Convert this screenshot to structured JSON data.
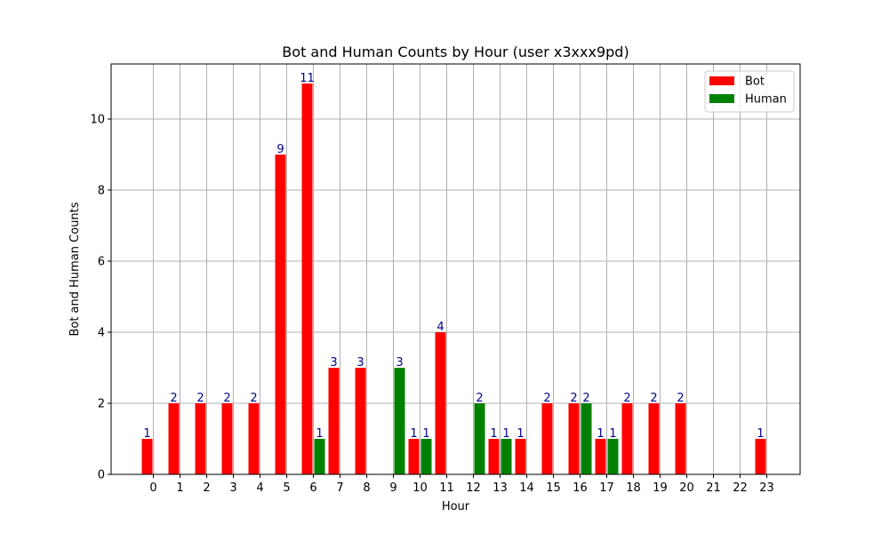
{
  "chart_data": {
    "type": "bar",
    "title": "Bot and Human Counts by Hour (user x3xxx9pd)",
    "xlabel": "Hour",
    "ylabel": "Bot and Human Counts",
    "categories": [
      "0",
      "1",
      "2",
      "3",
      "4",
      "5",
      "6",
      "7",
      "8",
      "9",
      "10",
      "11",
      "12",
      "13",
      "14",
      "15",
      "16",
      "17",
      "18",
      "19",
      "20",
      "21",
      "22",
      "23"
    ],
    "series": [
      {
        "name": "Bot",
        "color": "#ff0000",
        "values": [
          1,
          2,
          2,
          2,
          2,
          9,
          11,
          3,
          3,
          0,
          1,
          4,
          0,
          1,
          1,
          2,
          2,
          1,
          2,
          2,
          2,
          0,
          0,
          1
        ]
      },
      {
        "name": "Human",
        "color": "#008000",
        "values": [
          0,
          0,
          0,
          0,
          0,
          0,
          1,
          0,
          0,
          3,
          1,
          0,
          2,
          1,
          0,
          0,
          2,
          1,
          0,
          0,
          0,
          0,
          0,
          0
        ]
      }
    ],
    "ylim": [
      0,
      11.55
    ],
    "yticks": [
      "0",
      "2",
      "4",
      "6",
      "8",
      "10"
    ],
    "grid": true,
    "legend_position": "top-right",
    "data_label_color": "#00008b"
  }
}
